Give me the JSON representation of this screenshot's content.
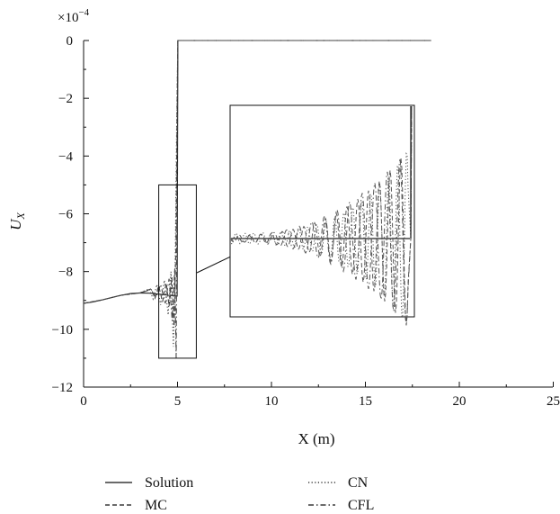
{
  "chart_data": {
    "type": "line",
    "xlabel": "X (m)",
    "ylabel": "U",
    "ylabel_subscript": "X",
    "y_scale_label": "×10",
    "y_scale_exponent": "−4",
    "xlim": [
      0,
      25
    ],
    "ylim": [
      -12,
      0
    ],
    "x_ticks": [
      "0",
      "5",
      "10",
      "15",
      "20",
      "25"
    ],
    "y_ticks": [
      "0",
      "−2",
      "−4",
      "−6",
      "−8",
      "−10",
      "−12"
    ],
    "x_tick_values": [
      0,
      5,
      10,
      15,
      20,
      25
    ],
    "y_tick_values": [
      0,
      -2,
      -4,
      -6,
      -8,
      -10,
      -12
    ],
    "grid": false,
    "legend_position": "bottom",
    "series": [
      {
        "name": "Solution",
        "style": "solid",
        "points": [
          [
            0,
            -9.1
          ],
          [
            0.5,
            -9.05
          ],
          [
            1,
            -8.98
          ],
          [
            1.5,
            -8.9
          ],
          [
            2,
            -8.82
          ],
          [
            2.5,
            -8.76
          ],
          [
            3,
            -8.74
          ],
          [
            3.5,
            -8.75
          ],
          [
            4,
            -8.78
          ],
          [
            4.5,
            -8.82
          ],
          [
            4.98,
            -8.85
          ],
          [
            5.02,
            0
          ],
          [
            18.5,
            0
          ]
        ]
      },
      {
        "name": "MC",
        "style": "dashed",
        "points": [
          [
            0,
            -9.1
          ],
          [
            1,
            -8.98
          ],
          [
            2,
            -8.82
          ],
          [
            3,
            -8.74
          ],
          [
            3.6,
            -8.6
          ],
          [
            3.8,
            -8.92
          ],
          [
            4.0,
            -8.5
          ],
          [
            4.2,
            -9.05
          ],
          [
            4.4,
            -8.4
          ],
          [
            4.55,
            -9.2
          ],
          [
            4.7,
            -8.2
          ],
          [
            4.82,
            -9.9
          ],
          [
            4.92,
            -7.0
          ],
          [
            4.98,
            -2.0
          ],
          [
            5.02,
            0
          ],
          [
            18.5,
            0
          ]
        ]
      },
      {
        "name": "CN",
        "style": "dotted",
        "points": [
          [
            0,
            -9.1
          ],
          [
            1,
            -8.98
          ],
          [
            2,
            -8.82
          ],
          [
            3,
            -8.74
          ],
          [
            3.5,
            -8.6
          ],
          [
            3.7,
            -8.95
          ],
          [
            3.9,
            -8.45
          ],
          [
            4.1,
            -9.15
          ],
          [
            4.3,
            -8.3
          ],
          [
            4.5,
            -9.5
          ],
          [
            4.65,
            -8.0
          ],
          [
            4.78,
            -10.6
          ],
          [
            4.88,
            -7.6
          ],
          [
            4.95,
            -3.0
          ],
          [
            5.02,
            0
          ],
          [
            18.5,
            0
          ]
        ]
      },
      {
        "name": "CFL",
        "style": "dashdot",
        "points": [
          [
            0,
            -9.1
          ],
          [
            1,
            -8.98
          ],
          [
            2,
            -8.82
          ],
          [
            3,
            -8.74
          ],
          [
            3.6,
            -8.62
          ],
          [
            3.85,
            -8.9
          ],
          [
            4.1,
            -8.45
          ],
          [
            4.35,
            -9.1
          ],
          [
            4.55,
            -8.25
          ],
          [
            4.72,
            -9.7
          ],
          [
            4.85,
            -7.9
          ],
          [
            4.93,
            -11.0
          ],
          [
            4.98,
            -4.0
          ],
          [
            5.02,
            0
          ],
          [
            18.5,
            0
          ]
        ]
      }
    ],
    "zoom_region": {
      "xlim": [
        4,
        6
      ],
      "ylim": [
        -11,
        -5
      ]
    }
  },
  "legend": {
    "items": [
      {
        "label": "Solution",
        "style": "solid"
      },
      {
        "label": "CN",
        "style": "dotted"
      },
      {
        "label": "MC",
        "style": "dashed"
      },
      {
        "label": "CFL",
        "style": "dashdot"
      }
    ]
  }
}
